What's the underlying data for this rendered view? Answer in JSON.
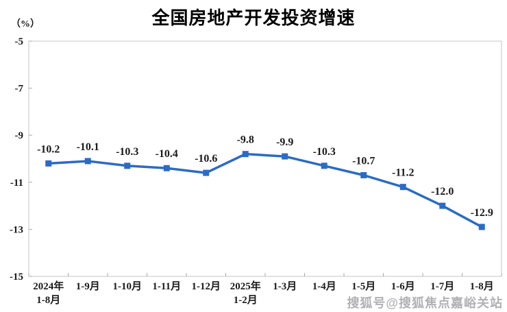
{
  "watermark": "搜狐号@搜狐焦点嘉峪关站",
  "chart_data": {
    "type": "line",
    "title": "全国房地产开发投资增速",
    "ylabel": "（%）",
    "xlabel": "",
    "legend": "none",
    "grid": false,
    "categories": [
      [
        "2024年",
        "1-8月"
      ],
      [
        "1-9月"
      ],
      [
        "1-10月"
      ],
      [
        "1-11月"
      ],
      [
        "1-12月"
      ],
      [
        "2025年",
        "1-2月"
      ],
      [
        "1-3月"
      ],
      [
        "1-4月"
      ],
      [
        "1-5月"
      ],
      [
        "1-6月"
      ],
      [
        "1-7月"
      ],
      [
        "1-8月"
      ]
    ],
    "series": [
      {
        "name": "全国房地产开发投资增速",
        "values": [
          -10.2,
          -10.1,
          -10.3,
          -10.4,
          -10.6,
          -9.8,
          -9.9,
          -10.3,
          -10.7,
          -11.2,
          -12.0,
          -12.9
        ],
        "data_labels": [
          "-10.2",
          "-10.1",
          "-10.3",
          "-10.4",
          "-10.6",
          "-9.8",
          "-9.9",
          "-10.3",
          "-10.7",
          "-11.2",
          "-12.0",
          "-12.9"
        ]
      }
    ],
    "y_ticks": [
      -5,
      -7,
      -9,
      -11,
      -13,
      -15
    ],
    "ylim": [
      -15,
      -5
    ],
    "colors": {
      "line": "#2a6bc5",
      "marker": "#2a6bc5",
      "data_label": "#1a1a1a",
      "axis_text": "#1a1a1a",
      "border": "#c6c6c6",
      "tick": "#a9a9a9",
      "title": "#000000",
      "watermark": "#b1b1b5"
    }
  }
}
